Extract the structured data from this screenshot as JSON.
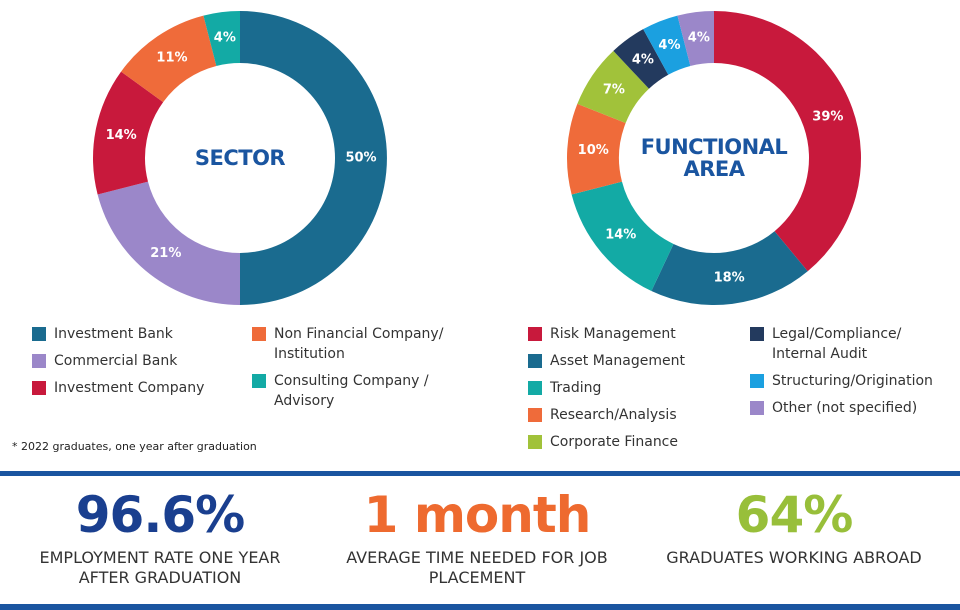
{
  "chart_data": [
    {
      "type": "donut",
      "title": "SECTOR",
      "categories": [
        "Investment Bank",
        "Commercial Bank",
        "Investment Company",
        "Non Financial Company/ Institution",
        "Consulting Company / Advisory"
      ],
      "values": [
        50,
        21,
        14,
        11,
        4
      ],
      "value_labels": [
        "50%",
        "21%",
        "14%",
        "11%",
        "4%"
      ],
      "colors": [
        "#1a6b8f",
        "#9b87c9",
        "#c8193c",
        "#ef6b3a",
        "#13aaa5"
      ]
    },
    {
      "type": "donut",
      "title": "FUNCTIONAL AREA",
      "categories": [
        "Risk Management",
        "Asset Management",
        "Trading",
        "Research/Analysis",
        "Corporate Finance",
        "Legal/Compliance/ Internal Audit",
        "Structuring/Origination",
        "Other (not specified)"
      ],
      "values": [
        39,
        18,
        14,
        10,
        7,
        4,
        4,
        4
      ],
      "value_labels": [
        "39%",
        "18%",
        "14%",
        "10%",
        "7%",
        "4%",
        "4%",
        "4%"
      ],
      "colors": [
        "#c8193c",
        "#1a6b8f",
        "#13aaa5",
        "#ef6b3a",
        "#a1c23a",
        "#233a5e",
        "#1ba0e0",
        "#9b87c9"
      ]
    }
  ],
  "footnote": "* 2022 graduates, one year after graduation",
  "stats": [
    {
      "value": "96.6%",
      "label": "EMPLOYMENT RATE ONE YEAR AFTER GRADUATION",
      "color": "#1a3f8f"
    },
    {
      "value": "1 month",
      "label": "AVERAGE TIME NEEDED FOR JOB PLACEMENT",
      "color": "#ee6a2f"
    },
    {
      "value": "64%",
      "label": "GRADUATES WORKING ABROAD",
      "color": "#98bf3a"
    }
  ]
}
